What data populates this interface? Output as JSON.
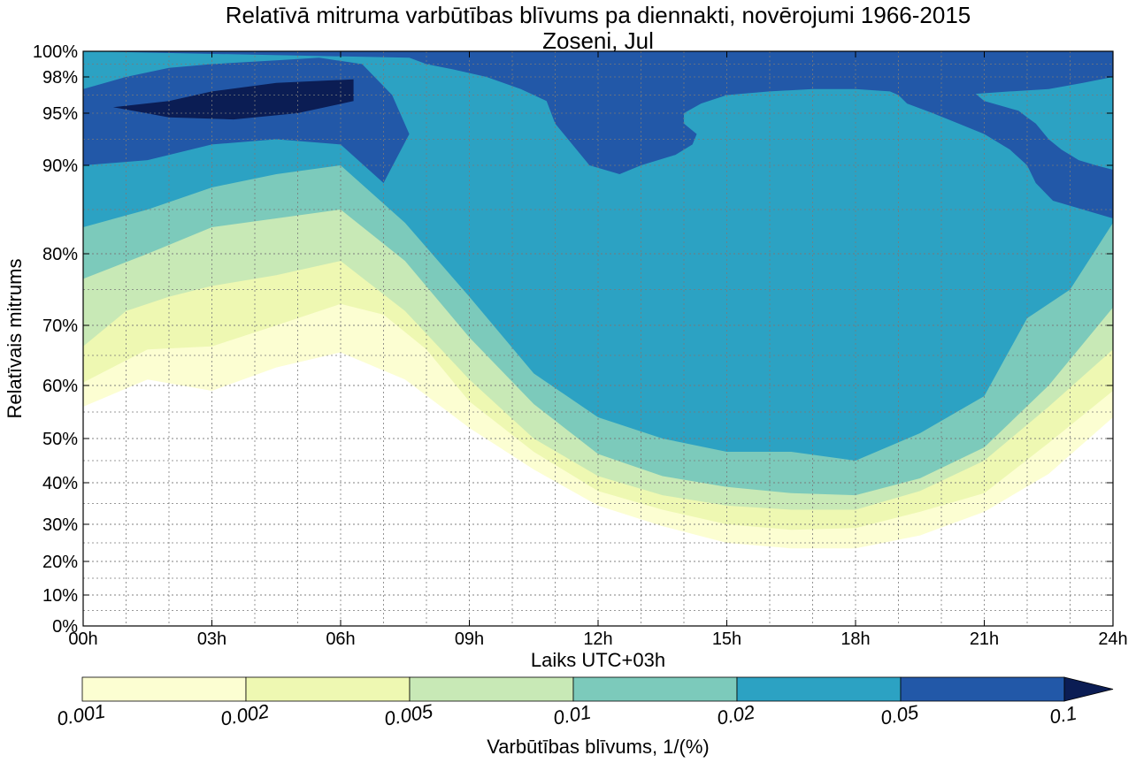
{
  "chart_data": {
    "type": "contourf",
    "title": "Relatīvā mitruma varbūtības blīvums pa diennakti, novērojumi 1966-2015",
    "subtitle": "Zoseni, Jul",
    "xlabel": "Laiks UTC+03h",
    "ylabel": "Relatīvais mitrums",
    "x_ticks": [
      "00h",
      "03h",
      "06h",
      "09h",
      "12h",
      "15h",
      "18h",
      "21h",
      "24h"
    ],
    "x_range": [
      0,
      24
    ],
    "y_ticks": [
      "0%",
      "10%",
      "20%",
      "30%",
      "40%",
      "50%",
      "60%",
      "70%",
      "80%",
      "90%",
      "95%",
      "98%",
      "100%"
    ],
    "y_tick_values": [
      0,
      10,
      20,
      30,
      40,
      50,
      60,
      70,
      80,
      90,
      95,
      98,
      100
    ],
    "y_scale": "non-linear (expanded near 100%)",
    "grid": true,
    "colorbar": {
      "label": "Varbūtības blīvums, 1/(%)",
      "tick_labels": [
        "0.001",
        "0.002",
        "0.005",
        "0.01",
        "0.02",
        "0.05",
        "0.1"
      ],
      "levels": [
        0.001,
        0.002,
        0.005,
        0.01,
        0.02,
        0.05,
        0.1
      ],
      "colors": [
        "#fcfed2",
        "#eef8b2",
        "#c8e9b6",
        "#7ccabb",
        "#2ca2c3",
        "#2258a8",
        "#0b1d54"
      ],
      "extend": "max"
    },
    "bands": [
      {
        "level": 0.001,
        "color": "#fcfed2",
        "outline": [
          [
            0,
            56
          ],
          [
            1.5,
            61
          ],
          [
            3,
            59
          ],
          [
            4.5,
            63
          ],
          [
            6,
            65.5
          ],
          [
            7.5,
            61
          ],
          [
            9,
            52
          ],
          [
            10.5,
            43
          ],
          [
            12,
            34.5
          ],
          [
            13.5,
            29.5
          ],
          [
            15,
            25
          ],
          [
            16.5,
            23.5
          ],
          [
            18,
            23.5
          ],
          [
            19.5,
            27
          ],
          [
            21,
            33
          ],
          [
            22.5,
            42
          ],
          [
            24,
            54
          ],
          [
            24,
            100
          ],
          [
            0,
            100
          ]
        ]
      },
      {
        "level": 0.002,
        "color": "#eef8b2",
        "outline": [
          [
            0,
            60.5
          ],
          [
            1.5,
            66
          ],
          [
            3,
            66.5
          ],
          [
            4.5,
            70
          ],
          [
            6,
            73
          ],
          [
            7,
            71.5
          ],
          [
            8,
            66
          ],
          [
            9,
            57
          ],
          [
            10.5,
            47
          ],
          [
            12,
            38
          ],
          [
            13.5,
            33.5
          ],
          [
            15,
            30
          ],
          [
            16.5,
            28.5
          ],
          [
            18,
            29
          ],
          [
            19.5,
            33
          ],
          [
            21,
            37.5
          ],
          [
            22.5,
            49
          ],
          [
            24,
            59
          ],
          [
            24,
            100
          ],
          [
            0,
            100
          ]
        ]
      },
      {
        "level": 0.005,
        "color": "#c8e9b6",
        "outline": [
          [
            0,
            66.5
          ],
          [
            1,
            72
          ],
          [
            2,
            74
          ],
          [
            3,
            75.5
          ],
          [
            4.5,
            77
          ],
          [
            6,
            79
          ],
          [
            7.5,
            72
          ],
          [
            9,
            61
          ],
          [
            10.5,
            50
          ],
          [
            12,
            41.5
          ],
          [
            13.5,
            37
          ],
          [
            15,
            34.5
          ],
          [
            16.5,
            33.5
          ],
          [
            18,
            33.5
          ],
          [
            19.5,
            38
          ],
          [
            21,
            45
          ],
          [
            22.5,
            56
          ],
          [
            24,
            66
          ],
          [
            24,
            100
          ],
          [
            0,
            100
          ]
        ]
      },
      {
        "level": 0.01,
        "color": "#7ccabb",
        "outline": [
          [
            0,
            76.5
          ],
          [
            1.5,
            80
          ],
          [
            3,
            83
          ],
          [
            4.5,
            84
          ],
          [
            6,
            85
          ],
          [
            7.5,
            79
          ],
          [
            9,
            68
          ],
          [
            10.5,
            56.5
          ],
          [
            12,
            46.5
          ],
          [
            13.5,
            41.5
          ],
          [
            15,
            39
          ],
          [
            16.5,
            37.5
          ],
          [
            18,
            37
          ],
          [
            19.5,
            41
          ],
          [
            21,
            48
          ],
          [
            22.5,
            60
          ],
          [
            24,
            72.5
          ],
          [
            24,
            100
          ],
          [
            0,
            100
          ]
        ]
      },
      {
        "level": 0.02,
        "color": "#2ca2c3",
        "outline": [
          [
            0,
            83
          ],
          [
            1.5,
            85
          ],
          [
            3,
            87.5
          ],
          [
            4.5,
            89
          ],
          [
            6,
            90
          ],
          [
            7.5,
            83.5
          ],
          [
            9,
            74
          ],
          [
            10.5,
            62
          ],
          [
            12,
            54
          ],
          [
            13.5,
            50
          ],
          [
            15,
            47
          ],
          [
            16.5,
            47
          ],
          [
            18,
            45
          ],
          [
            19.5,
            51
          ],
          [
            21,
            58
          ],
          [
            22,
            71
          ],
          [
            23,
            75
          ],
          [
            24,
            83.5
          ],
          [
            24,
            100
          ],
          [
            0,
            100
          ]
        ]
      },
      {
        "level": 0.05,
        "color": "#2258a8",
        "outline": [
          [
            0,
            90
          ],
          [
            1.5,
            90.5
          ],
          [
            3,
            92
          ],
          [
            4.5,
            92.5
          ],
          [
            6,
            92
          ],
          [
            7,
            88
          ],
          [
            7.6,
            93
          ],
          [
            7.2,
            96.5
          ],
          [
            6.5,
            99
          ],
          [
            5.5,
            99.5
          ],
          [
            4.5,
            99.3
          ],
          [
            3,
            99
          ],
          [
            2,
            98.7
          ],
          [
            1,
            98
          ],
          [
            0,
            97
          ],
          [
            0,
            100
          ],
          [
            24,
            100
          ],
          [
            24,
            98
          ],
          [
            23.3,
            97.5
          ],
          [
            22.5,
            97
          ],
          [
            21.6,
            96.8
          ],
          [
            20.8,
            96.6
          ],
          [
            21,
            96
          ],
          [
            21.4,
            95.6
          ],
          [
            21.8,
            95.2
          ],
          [
            22,
            94.6
          ],
          [
            22.2,
            94
          ],
          [
            22.5,
            92.5
          ],
          [
            22.8,
            91.5
          ],
          [
            23.2,
            90.5
          ],
          [
            23.6,
            90
          ],
          [
            24,
            89.5
          ],
          [
            24,
            84
          ],
          [
            23.3,
            85
          ],
          [
            22.6,
            86
          ],
          [
            22.2,
            88
          ],
          [
            22,
            90
          ],
          [
            21.6,
            91.5
          ],
          [
            21,
            93
          ],
          [
            20.4,
            94
          ],
          [
            19.8,
            95
          ],
          [
            19.2,
            95.8
          ],
          [
            19,
            96.5
          ],
          [
            18.8,
            96.8
          ],
          [
            18,
            97
          ],
          [
            17,
            97
          ],
          [
            16,
            96.8
          ],
          [
            15,
            96.5
          ],
          [
            14.4,
            95.8
          ],
          [
            14,
            95
          ],
          [
            14,
            94
          ],
          [
            14.3,
            93
          ],
          [
            14.2,
            92
          ],
          [
            13.8,
            91
          ],
          [
            13,
            90
          ],
          [
            12.5,
            89
          ],
          [
            11.8,
            90
          ],
          [
            11.4,
            92
          ],
          [
            11,
            94
          ],
          [
            10.8,
            96
          ],
          [
            10.2,
            97
          ],
          [
            9.4,
            98
          ],
          [
            8.6,
            98.6
          ],
          [
            8,
            99
          ],
          [
            7.6,
            99.5
          ],
          [
            0,
            100
          ]
        ]
      },
      {
        "level": 0.1,
        "color": "#0b1d54",
        "outline": [
          [
            0.7,
            95.5
          ],
          [
            2,
            96
          ],
          [
            3,
            96.8
          ],
          [
            4.5,
            97.5
          ],
          [
            6.3,
            97.8
          ],
          [
            6.3,
            96
          ],
          [
            5,
            95
          ],
          [
            3.5,
            94.4
          ],
          [
            2,
            94.6
          ],
          [
            0.7,
            95.5
          ]
        ]
      }
    ]
  }
}
